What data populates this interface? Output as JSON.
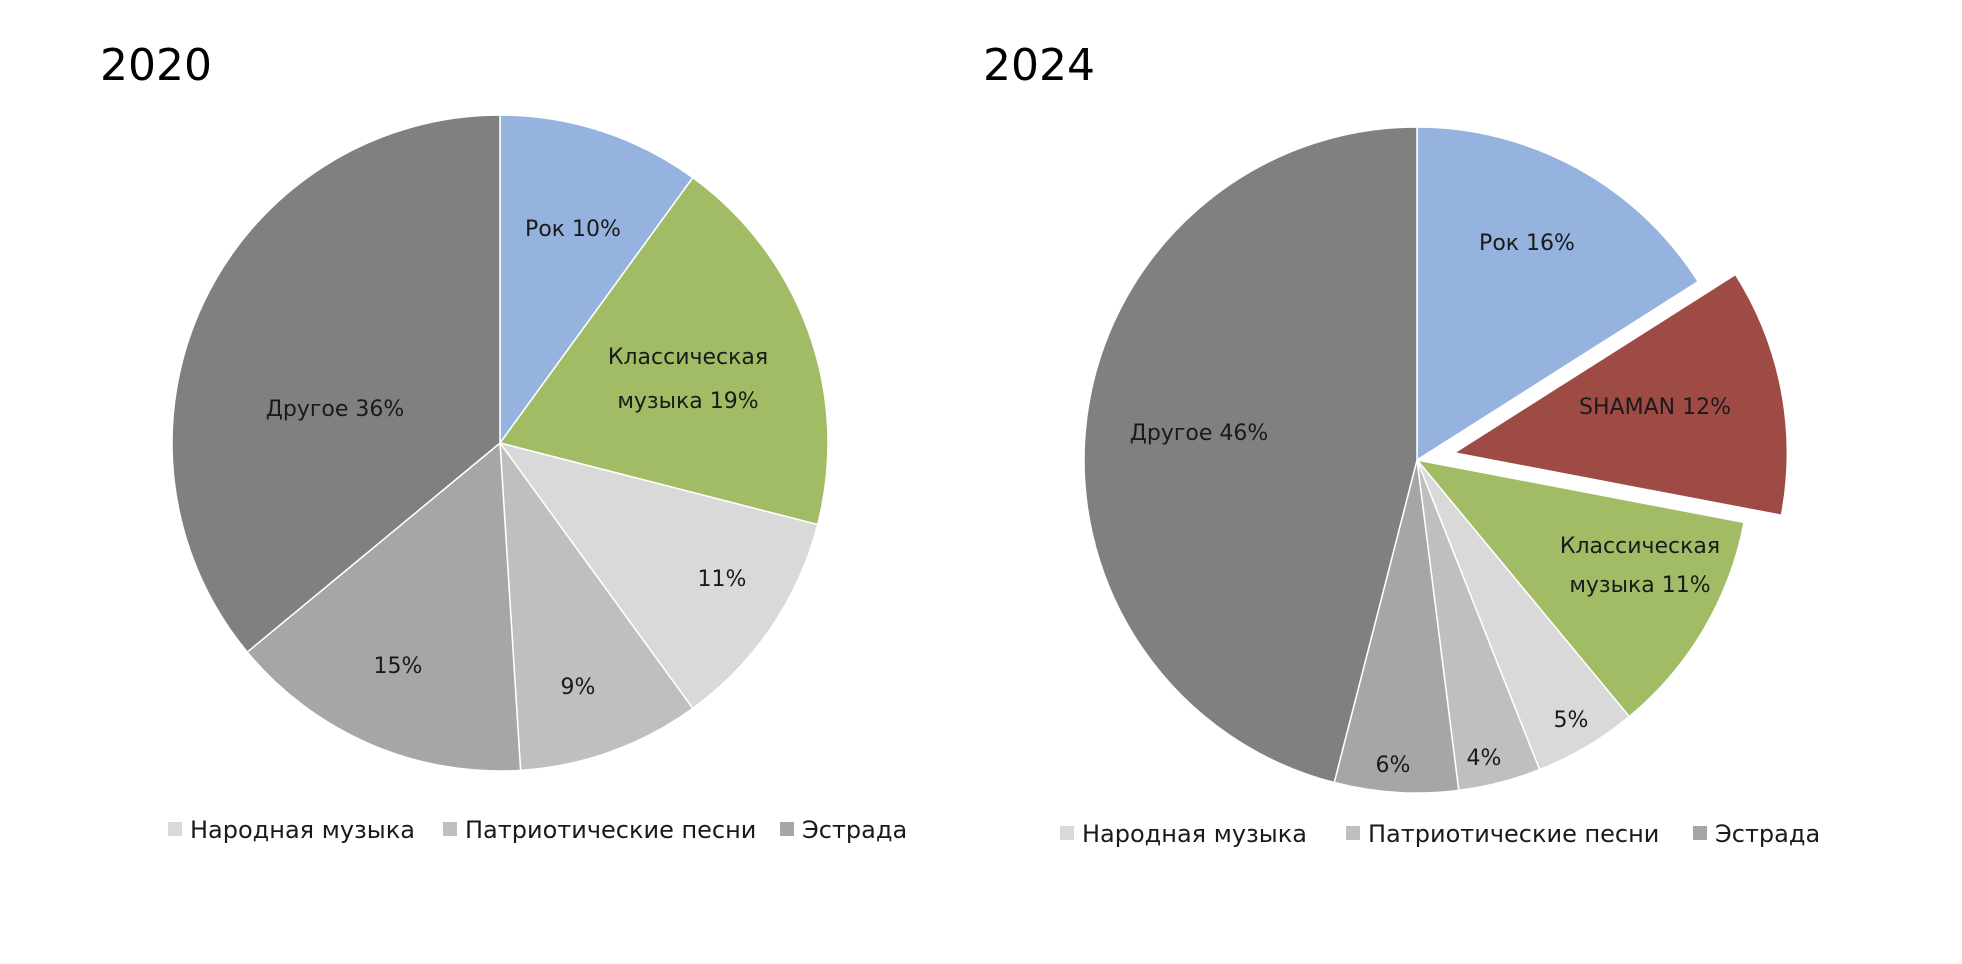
{
  "chart_data": [
    {
      "type": "pie",
      "title": "2020",
      "slices": [
        {
          "name": "Рок",
          "value": 10,
          "label_lines": [
            "Рок 10%"
          ],
          "color": "#95B3DE"
        },
        {
          "name": "Классическая музыка",
          "value": 19,
          "label_lines": [
            "Классическая",
            "музыка 19%"
          ],
          "color": "#A2BC66"
        },
        {
          "name": "Народная музыка",
          "value": 11,
          "label_lines": [
            "11%"
          ],
          "color": "#D9D9D9"
        },
        {
          "name": "Патриотические песни",
          "value": 9,
          "label_lines": [
            "9%"
          ],
          "color": "#BFBFBF"
        },
        {
          "name": "Эстрада",
          "value": 15,
          "label_lines": [
            "15%"
          ],
          "color": "#A6A6A6"
        },
        {
          "name": "Другое",
          "value": 36,
          "label_lines": [
            "Другое 36%"
          ],
          "color": "#808080"
        }
      ],
      "legend": [
        {
          "label": "Народная музыка",
          "color": "#D9D9D9"
        },
        {
          "label": "Патриотические песни",
          "color": "#BFBFBF"
        },
        {
          "label": "Эстрада",
          "color": "#A6A6A6"
        }
      ],
      "legend_placement": "bottom"
    },
    {
      "type": "pie",
      "title": "2024",
      "slices": [
        {
          "name": "Рок",
          "value": 16,
          "label_lines": [
            "Рок 16%"
          ],
          "color": "#95B3DE"
        },
        {
          "name": "SHAMAN",
          "value": 12,
          "label_lines": [
            "SHAMAN 12%"
          ],
          "color": "#9E4B45",
          "exploded": true
        },
        {
          "name": "Классическая музыка",
          "value": 11,
          "label_lines": [
            "Классическая",
            "музыка 11%"
          ],
          "color": "#A2BC66"
        },
        {
          "name": "Народная музыка",
          "value": 5,
          "label_lines": [
            "5%"
          ],
          "color": "#D9D9D9"
        },
        {
          "name": "Патриотические песни",
          "value": 4,
          "label_lines": [
            "4%"
          ],
          "color": "#BFBFBF"
        },
        {
          "name": "Эстрада",
          "value": 6,
          "label_lines": [
            "6%"
          ],
          "color": "#A6A6A6"
        },
        {
          "name": "Другое",
          "value": 46,
          "label_lines": [
            "Другое 46%"
          ],
          "color": "#808080"
        }
      ],
      "legend": [
        {
          "label": "Народная музыка",
          "color": "#D9D9D9"
        },
        {
          "label": "Патриотические песни",
          "color": "#BFBFBF"
        },
        {
          "label": "Эстрада",
          "color": "#A6A6A6"
        }
      ],
      "legend_placement": "bottom"
    }
  ]
}
